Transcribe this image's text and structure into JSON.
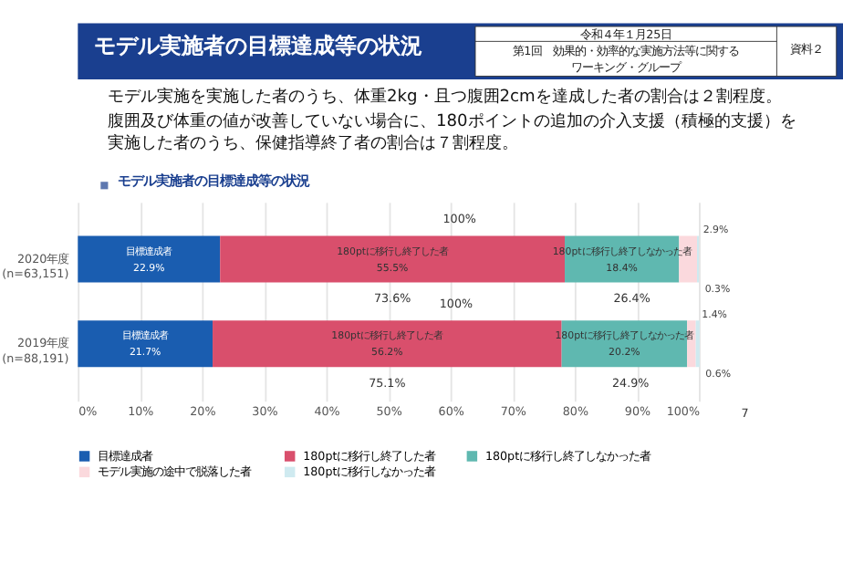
{
  "chart_data": {
    "type": "bar",
    "orientation": "horizontal",
    "stacked": true,
    "title": "モデル実施者の目標達成等の状況",
    "subtitle": "モデル実施者の目標達成等の状況",
    "categories": [
      "2020年度\n(n=63,151)",
      "2019年度\n(n=88,191)"
    ],
    "series": [
      {
        "name": "目標達成者",
        "color": "#1a5db0",
        "values": [
          22.9,
          21.7
        ],
        "value_labels": [
          "22.9%",
          "21.7%"
        ]
      },
      {
        "name": "180ptに移行し終了した者",
        "color": "#d94f6c",
        "values": [
          55.5,
          56.2
        ],
        "value_labels": [
          "55.5%",
          "56.2%"
        ]
      },
      {
        "name": "180ptに移行し終了しなかった者",
        "color": "#5fb8b0",
        "values": [
          18.4,
          20.2
        ],
        "value_labels": [
          "18.4%",
          "20.2%"
        ]
      },
      {
        "name": "モデル実施の途中で脱落した者",
        "color": "#fbd9dd",
        "values": [
          2.9,
          1.4
        ],
        "value_labels": [
          "2.9%",
          "1.4%"
        ]
      },
      {
        "name": "180ptに移行しなかった者",
        "color": "#cfeaf0",
        "values": [
          0.3,
          0.6
        ],
        "value_labels": [
          "0.3%",
          "0.6%"
        ]
      }
    ],
    "xlim": [
      0,
      100
    ],
    "xticks": [
      {
        "value": 0,
        "label": "0%"
      },
      {
        "value": 10,
        "label": "10%"
      },
      {
        "value": 20,
        "label": "20%"
      },
      {
        "value": 30,
        "label": "30%"
      },
      {
        "value": 40,
        "label": "40%"
      },
      {
        "value": 50,
        "label": "50%"
      },
      {
        "value": 60,
        "label": "60%"
      },
      {
        "value": 70,
        "label": "70%"
      },
      {
        "value": 80,
        "label": "80%"
      },
      {
        "value": 90,
        "label": "90%"
      },
      {
        "value": 100,
        "label": "100%"
      }
    ],
    "grid": "x",
    "legend": "bottom",
    "annotations": [
      "令和４年１月25日",
      "第1回　効果的・効率的な実施方法等に関するワーキング・グループ",
      "資料２",
      "モデル実施を実施した者のうち、体重2kg・且つ腹囲2cmを達成した者の割合は２割程度。",
      "腹囲及び体重の値が改善していない場合に、180ポイントの追加の介入支援（積極的支援）を実施した者のうち、保健指導終了者の割合は７割程度。",
      "7",
      "100%",
      "73.6%",
      "26.4%",
      "100%",
      "75.1%",
      "24.9%"
    ]
  }
}
